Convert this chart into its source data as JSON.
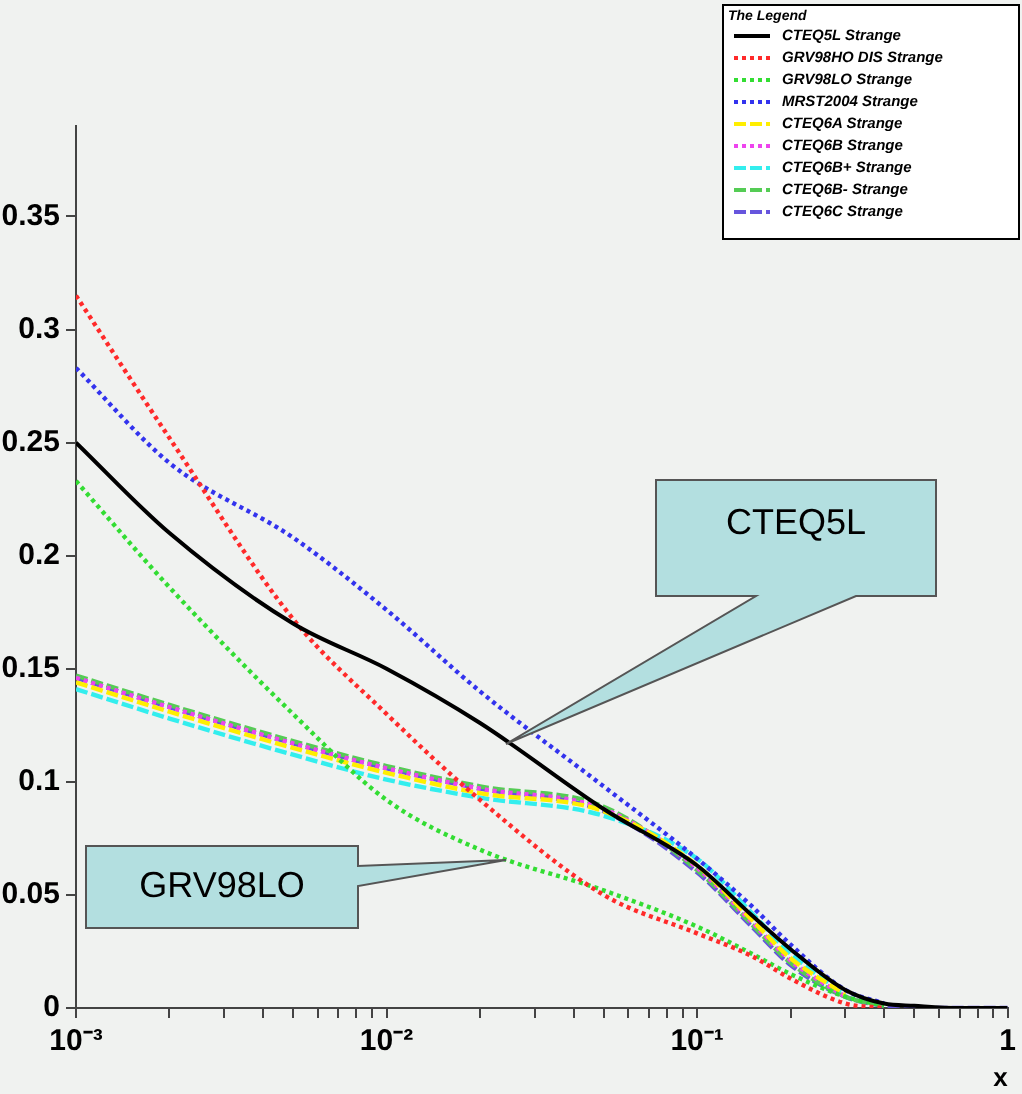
{
  "chart_data": {
    "type": "line",
    "xlabel": "x",
    "legend_title": "The Legend",
    "legend": "top right",
    "grid": false,
    "log": "x",
    "marker": "none",
    "x": [
      0.001,
      0.002,
      0.005,
      0.01,
      0.02,
      0.05,
      0.1,
      0.15,
      0.2,
      0.3,
      0.4,
      0.5,
      0.7,
      1
    ],
    "xlim": [
      0.001,
      1
    ],
    "xticks": [
      {
        "value": 0.001,
        "label": "10⁻³"
      },
      {
        "value": 0.002,
        "label": null
      },
      {
        "value": 0.003,
        "label": null
      },
      {
        "value": 0.004,
        "label": null
      },
      {
        "value": 0.005,
        "label": null
      },
      {
        "value": 0.006,
        "label": null
      },
      {
        "value": 0.007,
        "label": null
      },
      {
        "value": 0.008,
        "label": null
      },
      {
        "value": 0.009,
        "label": null
      },
      {
        "value": 0.01,
        "label": "10⁻²"
      },
      {
        "value": 0.02,
        "label": null
      },
      {
        "value": 0.03,
        "label": null
      },
      {
        "value": 0.04,
        "label": null
      },
      {
        "value": 0.05,
        "label": null
      },
      {
        "value": 0.06,
        "label": null
      },
      {
        "value": 0.07,
        "label": null
      },
      {
        "value": 0.08,
        "label": null
      },
      {
        "value": 0.09,
        "label": null
      },
      {
        "value": 0.1,
        "label": "10⁻¹"
      },
      {
        "value": 0.2,
        "label": null
      },
      {
        "value": 0.3,
        "label": null
      },
      {
        "value": 0.4,
        "label": null
      },
      {
        "value": 0.5,
        "label": null
      },
      {
        "value": 0.6,
        "label": null
      },
      {
        "value": 0.7,
        "label": null
      },
      {
        "value": 0.8,
        "label": null
      },
      {
        "value": 0.9,
        "label": null
      },
      {
        "value": 1,
        "label": "1"
      }
    ],
    "ylim": [
      0,
      0.39
    ],
    "yticks": [
      0,
      0.05,
      0.1,
      0.15,
      0.2,
      0.25,
      0.3,
      0.35
    ],
    "series": [
      {
        "name": "CTEQ5L Strange",
        "color": "#000000",
        "line_style": "solid",
        "values": [
          0.25,
          0.21,
          0.17,
          0.15,
          0.126,
          0.088,
          0.063,
          0.041,
          0.026,
          0.008,
          0.002,
          0.001,
          0,
          0
        ]
      },
      {
        "name": "GRV98HO DIS Strange",
        "color": "#ff2a2a",
        "line_style": "dotted",
        "values": [
          0.315,
          0.252,
          0.172,
          0.13,
          0.092,
          0.05,
          0.033,
          0.023,
          0.013,
          0.002,
          0,
          null,
          null,
          null
        ]
      },
      {
        "name": "GRV98LO Strange",
        "color": "#33dd33",
        "line_style": "dotted",
        "values": [
          0.233,
          0.186,
          0.13,
          0.092,
          0.07,
          0.052,
          0.036,
          0.024,
          0.015,
          0.005,
          0.001,
          null,
          null,
          null
        ]
      },
      {
        "name": "MRST2004 Strange",
        "color": "#3333ee",
        "line_style": "dotted",
        "values": [
          0.283,
          0.241,
          0.208,
          0.176,
          0.14,
          0.098,
          0.066,
          0.045,
          0.028,
          0.008,
          0.002,
          null,
          null,
          null
        ]
      },
      {
        "name": "CTEQ6A Strange",
        "color": "#ffee00",
        "line_style": "dashed",
        "values": [
          0.144,
          0.131,
          0.115,
          0.104,
          0.095,
          0.087,
          0.063,
          0.039,
          0.022,
          0.006,
          null,
          null,
          null,
          null
        ]
      },
      {
        "name": "CTEQ6B Strange",
        "color": "#ee44ee",
        "line_style": "dotted",
        "values": [
          0.146,
          0.133,
          0.117,
          0.106,
          0.097,
          0.088,
          0.062,
          0.038,
          0.021,
          0.005,
          null,
          null,
          null,
          null
        ]
      },
      {
        "name": "CTEQ6B+ Strange",
        "color": "#33eeee",
        "line_style": "dashed",
        "values": [
          0.141,
          0.128,
          0.112,
          0.101,
          0.093,
          0.085,
          0.066,
          0.042,
          0.024,
          0.006,
          null,
          null,
          null,
          null
        ]
      },
      {
        "name": "CTEQ6B- Strange",
        "color": "#55cc55",
        "line_style": "dashed",
        "values": [
          0.147,
          0.134,
          0.118,
          0.107,
          0.098,
          0.089,
          0.061,
          0.037,
          0.02,
          0.005,
          0.001,
          null,
          null,
          null
        ]
      },
      {
        "name": "CTEQ6C Strange",
        "color": "#6655dd",
        "line_style": "dashed",
        "values": [
          0.146,
          0.133,
          0.117,
          0.106,
          0.097,
          0.087,
          0.06,
          0.036,
          0.019,
          0.005,
          0.001,
          0,
          0,
          0
        ]
      }
    ],
    "annotations": [
      "CTEQ5L",
      "GRV98LO"
    ]
  }
}
